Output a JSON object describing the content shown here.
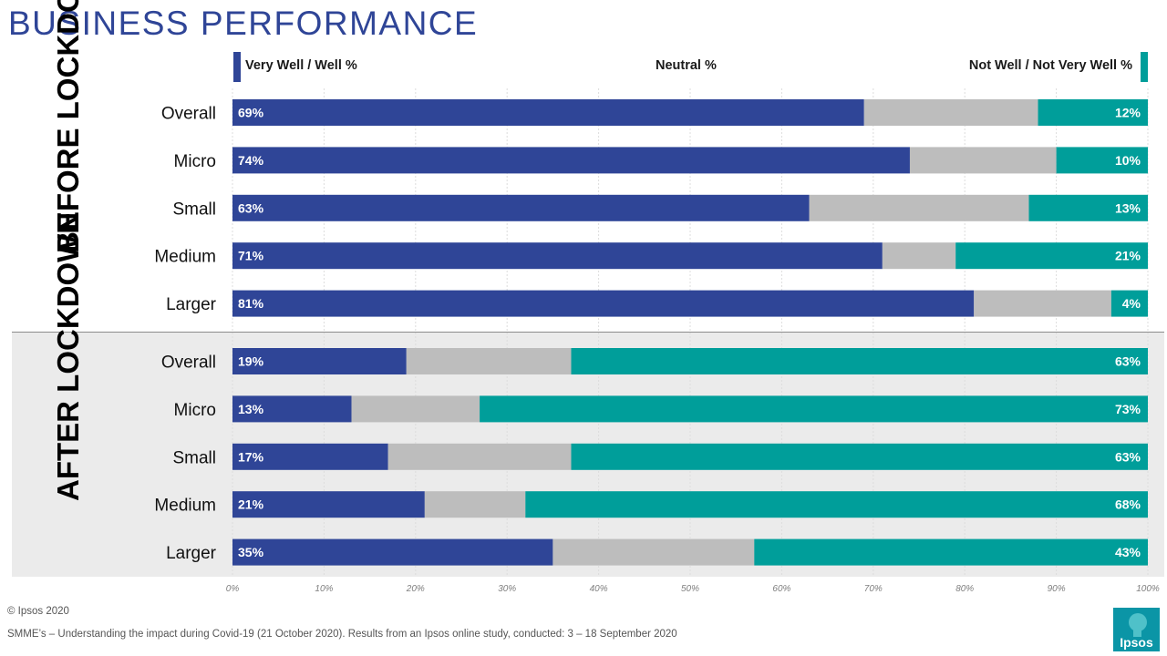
{
  "title": "BUSINESS PERFORMANCE",
  "sections": {
    "before": "BEFORE LOCKDOWN",
    "after": "AFTER LOCKDOWN"
  },
  "legend": {
    "well": "Very Well / Well %",
    "neutral": "Neutral %",
    "not_well": "Not Well / Not Very Well %"
  },
  "colors": {
    "well": "#2f4597",
    "neutral": "#bdbdbd",
    "not_well": "#009e9a",
    "title": "#2f4597"
  },
  "chart_data": {
    "type": "bar",
    "stacked": true,
    "orientation": "horizontal",
    "title": "BUSINESS PERFORMANCE",
    "xlim": [
      0,
      100
    ],
    "x_ticks": [
      "0%",
      "10%",
      "20%",
      "30%",
      "40%",
      "50%",
      "60%",
      "70%",
      "80%",
      "90%",
      "100%"
    ],
    "series_names": [
      "Very Well / Well %",
      "Neutral %",
      "Not Well / Not Very Well %"
    ],
    "groups": [
      {
        "name": "BEFORE LOCKDOWN",
        "categories": [
          "Overall",
          "Micro",
          "Small",
          "Medium",
          "Larger"
        ],
        "well": [
          69,
          74,
          63,
          71,
          81
        ],
        "neutral": [
          19,
          16,
          24,
          8,
          15
        ],
        "not_well": [
          12,
          10,
          13,
          21,
          4
        ],
        "well_labels": [
          "69%",
          "74%",
          "63%",
          "71%",
          "81%"
        ],
        "not_well_labels": [
          "12%",
          "10%",
          "13%",
          "21%",
          "4%"
        ]
      },
      {
        "name": "AFTER LOCKDOWN",
        "categories": [
          "Overall",
          "Micro",
          "Small",
          "Medium",
          "Larger"
        ],
        "well": [
          19,
          13,
          17,
          21,
          35
        ],
        "neutral": [
          18,
          14,
          20,
          11,
          22
        ],
        "not_well": [
          63,
          73,
          63,
          68,
          43
        ],
        "well_labels": [
          "19%",
          "13%",
          "17%",
          "21%",
          "35%"
        ],
        "not_well_labels": [
          "63%",
          "73%",
          "63%",
          "68%",
          "43%"
        ]
      }
    ]
  },
  "footer": {
    "copyright": "© Ipsos 2020",
    "source": "SMME’s  – Understanding the impact during Covid-19 (21 October 2020). Results from an Ipsos online study, conducted: 3 – 18 September 2020"
  },
  "logo": {
    "text": "Ipsos"
  }
}
